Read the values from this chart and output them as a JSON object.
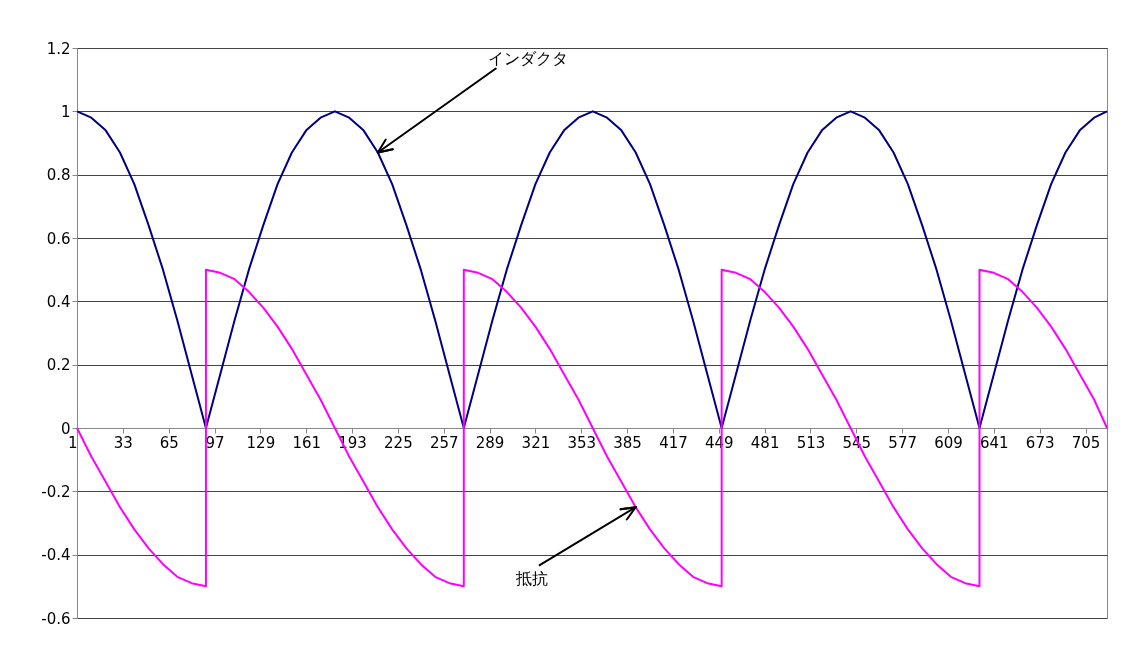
{
  "chart_data": {
    "type": "line",
    "xlim": [
      1,
      720
    ],
    "xticks": [
      1,
      33,
      65,
      97,
      129,
      161,
      193,
      225,
      257,
      289,
      321,
      353,
      385,
      417,
      449,
      481,
      513,
      545,
      577,
      609,
      641,
      673,
      705
    ],
    "ylim": [
      -0.6,
      1.2
    ],
    "yticks": [
      -0.6,
      -0.4,
      -0.2,
      0,
      0.2,
      0.4,
      0.6,
      0.8,
      1,
      1.2
    ],
    "grid": "y",
    "series": [
      {
        "color": "#000080",
        "x": [
          1,
          11,
          21,
          31,
          41,
          51,
          61,
          71,
          81,
          91,
          101,
          111,
          121,
          131,
          141,
          151,
          161,
          171,
          181,
          191,
          201,
          211,
          221,
          231,
          241,
          251,
          261,
          271,
          281,
          291,
          301,
          311,
          321,
          331,
          341,
          351,
          361,
          371,
          381,
          391,
          401,
          411,
          421,
          431,
          441,
          451,
          461,
          471,
          481,
          491,
          501,
          511,
          521,
          531,
          541,
          551,
          561,
          571,
          581,
          591,
          601,
          611,
          621,
          631,
          641,
          651,
          661,
          671,
          681,
          691,
          701,
          711,
          720
        ],
        "values": [
          1,
          0.98,
          0.94,
          0.87,
          0.77,
          0.64,
          0.5,
          0.34,
          0.17,
          0,
          0.17,
          0.34,
          0.5,
          0.64,
          0.77,
          0.87,
          0.94,
          0.98,
          1,
          0.98,
          0.94,
          0.87,
          0.77,
          0.64,
          0.5,
          0.34,
          0.17,
          0,
          0.17,
          0.34,
          0.5,
          0.64,
          0.77,
          0.87,
          0.94,
          0.98,
          1,
          0.98,
          0.94,
          0.87,
          0.77,
          0.64,
          0.5,
          0.34,
          0.17,
          0,
          0.17,
          0.34,
          0.5,
          0.64,
          0.77,
          0.87,
          0.94,
          0.98,
          1,
          0.98,
          0.94,
          0.87,
          0.77,
          0.64,
          0.5,
          0.34,
          0.17,
          0,
          0.17,
          0.34,
          0.5,
          0.64,
          0.77,
          0.87,
          0.94,
          0.98,
          1
        ]
      },
      {
        "color": "#ff00ff",
        "x": [
          1,
          11,
          21,
          31,
          41,
          51,
          61,
          71,
          81,
          91,
          91,
          101,
          111,
          121,
          131,
          141,
          151,
          161,
          171,
          181,
          191,
          201,
          211,
          221,
          231,
          241,
          251,
          261,
          271,
          271,
          281,
          291,
          301,
          311,
          321,
          331,
          341,
          351,
          361,
          371,
          381,
          391,
          401,
          411,
          421,
          431,
          441,
          451,
          451,
          461,
          471,
          481,
          491,
          501,
          511,
          521,
          531,
          541,
          551,
          561,
          571,
          581,
          591,
          601,
          611,
          621,
          631,
          631,
          641,
          651,
          661,
          671,
          681,
          691,
          701,
          711,
          720
        ],
        "values": [
          0,
          -0.09,
          -0.17,
          -0.25,
          -0.32,
          -0.38,
          -0.43,
          -0.47,
          -0.49,
          -0.5,
          0.5,
          0.49,
          0.47,
          0.43,
          0.38,
          0.32,
          0.25,
          0.17,
          0.09,
          0,
          -0.09,
          -0.17,
          -0.25,
          -0.32,
          -0.38,
          -0.43,
          -0.47,
          -0.49,
          -0.5,
          0.5,
          0.49,
          0.47,
          0.43,
          0.38,
          0.32,
          0.25,
          0.17,
          0.09,
          0,
          -0.09,
          -0.17,
          -0.25,
          -0.32,
          -0.38,
          -0.43,
          -0.47,
          -0.49,
          -0.5,
          0.5,
          0.49,
          0.47,
          0.43,
          0.38,
          0.32,
          0.25,
          0.17,
          0.09,
          0,
          -0.09,
          -0.17,
          -0.25,
          -0.32,
          -0.38,
          -0.43,
          -0.47,
          -0.49,
          -0.5,
          0.5,
          0.49,
          0.47,
          0.43,
          0.38,
          0.32,
          0.25,
          0.17,
          0.09,
          0
        ]
      }
    ],
    "annotations": [
      {
        "text": "インダクタ",
        "x": 211,
        "y": 0.87
      },
      {
        "text": "抵抗",
        "x": 391,
        "y": -0.25
      }
    ]
  }
}
